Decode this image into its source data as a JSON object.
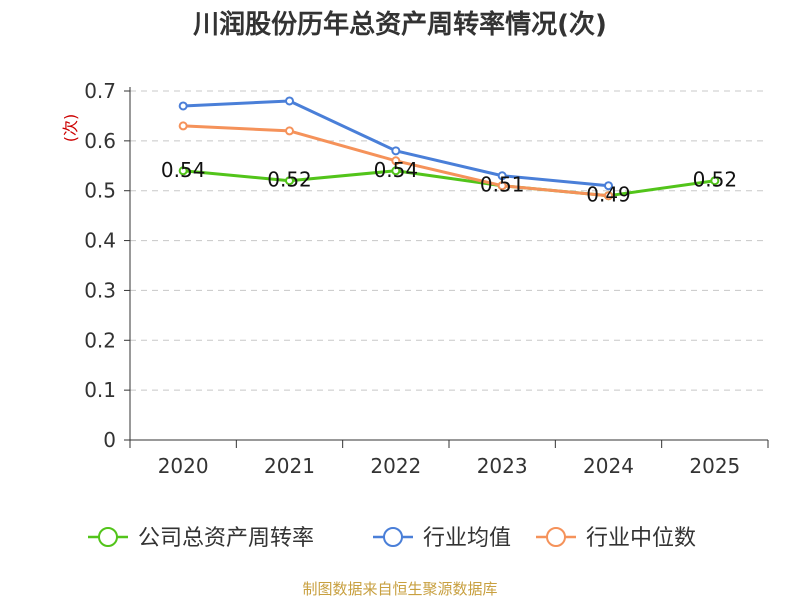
{
  "chart_data": {
    "type": "line",
    "title": "川润股份历年总资产周转率情况(次)",
    "ylabel": "(次)",
    "xlabel": "",
    "ylim": [
      0,
      0.7
    ],
    "yticks": [
      "0",
      "0.1",
      "0.2",
      "0.3",
      "0.4",
      "0.5",
      "0.6",
      "0.7"
    ],
    "ytick_values": [
      0,
      0.1,
      0.2,
      0.3,
      0.4,
      0.5,
      0.6,
      0.7
    ],
    "categories": [
      "2020",
      "2021",
      "2022",
      "2023",
      "2024",
      "2025"
    ],
    "grid": true,
    "legend_position": "bottom",
    "series": [
      {
        "name": "公司总资产周转率",
        "color": "#52c41a",
        "values": [
          0.54,
          0.52,
          0.54,
          0.51,
          0.49,
          0.52
        ],
        "labels": [
          "0.54",
          "0.52",
          "0.54",
          "0.51",
          "0.49",
          "0.52"
        ],
        "show_labels": true
      },
      {
        "name": "行业均值",
        "color": "#4a7fd8",
        "values": [
          0.67,
          0.68,
          0.58,
          0.53,
          0.51,
          null
        ],
        "show_labels": false
      },
      {
        "name": "行业中位数",
        "color": "#f5925a",
        "values": [
          0.63,
          0.62,
          0.56,
          0.51,
          0.49,
          null
        ],
        "show_labels": false
      }
    ],
    "source": "制图数据来自恒生聚源数据库"
  }
}
